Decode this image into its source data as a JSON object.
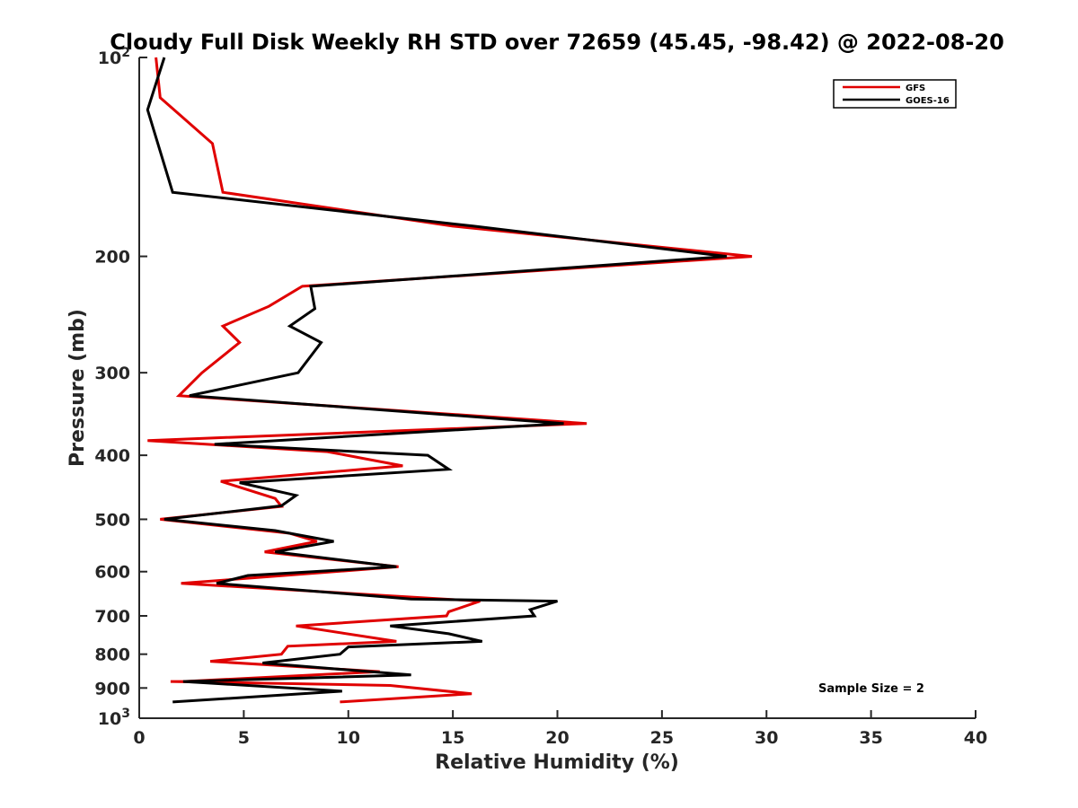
{
  "chart_data": {
    "type": "line",
    "title": "Cloudy Full Disk Weekly RH STD over 72659 (45.45, -98.42) @ 2022-08-20",
    "xlabel": "Relative Humidity (%)",
    "ylabel": "Pressure (mb)",
    "xlim": [
      0,
      40
    ],
    "ylim": [
      100,
      1000
    ],
    "y_scale": "log",
    "y_reversed": true,
    "x_ticks": [
      "0",
      "5",
      "10",
      "15",
      "20",
      "25",
      "30",
      "35",
      "40"
    ],
    "y_ticks": [
      {
        "value": 100,
        "base": "10",
        "exp": "2"
      },
      {
        "value": 200,
        "label": "200"
      },
      {
        "value": 300,
        "label": "300"
      },
      {
        "value": 400,
        "label": "400"
      },
      {
        "value": 500,
        "label": "500"
      },
      {
        "value": 600,
        "label": "600"
      },
      {
        "value": 700,
        "label": "700"
      },
      {
        "value": 800,
        "label": "800"
      },
      {
        "value": 900,
        "label": "900"
      },
      {
        "value": 1000,
        "base": "10",
        "exp": "3"
      }
    ],
    "legend_position": "top-right",
    "grid": false,
    "annotation": "Sample Size = 2",
    "series": [
      {
        "name": "GFS",
        "color": "#e00000",
        "points": [
          [
            0.8,
            100
          ],
          [
            1.0,
            115
          ],
          [
            3.5,
            135
          ],
          [
            4.0,
            160
          ],
          [
            15.0,
            180
          ],
          [
            29.3,
            200
          ],
          [
            7.8,
            222
          ],
          [
            6.2,
            238
          ],
          [
            4.0,
            255
          ],
          [
            4.8,
            270
          ],
          [
            3.0,
            300
          ],
          [
            1.9,
            325
          ],
          [
            21.4,
            358
          ],
          [
            0.4,
            380
          ],
          [
            9.0,
            395
          ],
          [
            12.6,
            415
          ],
          [
            3.9,
            438
          ],
          [
            6.5,
            465
          ],
          [
            6.8,
            478
          ],
          [
            1.0,
            500
          ],
          [
            7.2,
            525
          ],
          [
            8.5,
            540
          ],
          [
            6.0,
            560
          ],
          [
            12.4,
            590
          ],
          [
            2.0,
            625
          ],
          [
            16.3,
            665
          ],
          [
            14.8,
            690
          ],
          [
            14.7,
            700
          ],
          [
            7.5,
            725
          ],
          [
            12.3,
            765
          ],
          [
            7.1,
            778
          ],
          [
            6.8,
            800
          ],
          [
            3.4,
            820
          ],
          [
            11.5,
            850
          ],
          [
            2.1,
            880
          ],
          [
            1.5,
            880
          ],
          [
            12.0,
            892
          ],
          [
            15.9,
            918
          ],
          [
            9.6,
            945
          ]
        ]
      },
      {
        "name": "GOES-16",
        "color": "#000000",
        "points": [
          [
            1.2,
            100
          ],
          [
            0.4,
            120
          ],
          [
            1.6,
            160
          ],
          [
            16.0,
            180
          ],
          [
            28.1,
            200
          ],
          [
            8.2,
            222
          ],
          [
            8.4,
            240
          ],
          [
            7.2,
            255
          ],
          [
            8.7,
            270
          ],
          [
            7.6,
            300
          ],
          [
            2.4,
            325
          ],
          [
            20.3,
            358
          ],
          [
            3.6,
            385
          ],
          [
            13.8,
            400
          ],
          [
            14.8,
            420
          ],
          [
            4.8,
            440
          ],
          [
            7.5,
            460
          ],
          [
            6.8,
            477
          ],
          [
            1.2,
            500
          ],
          [
            6.5,
            520
          ],
          [
            9.3,
            540
          ],
          [
            6.5,
            560
          ],
          [
            12.3,
            590
          ],
          [
            5.2,
            608
          ],
          [
            3.7,
            625
          ],
          [
            13.0,
            660
          ],
          [
            20.0,
            665
          ],
          [
            18.7,
            685
          ],
          [
            18.9,
            700
          ],
          [
            12.0,
            725
          ],
          [
            14.8,
            745
          ],
          [
            16.4,
            765
          ],
          [
            10.0,
            780
          ],
          [
            9.6,
            800
          ],
          [
            5.9,
            825
          ],
          [
            13.0,
            860
          ],
          [
            2.1,
            880
          ],
          [
            9.7,
            910
          ],
          [
            1.6,
            945
          ]
        ]
      }
    ]
  }
}
